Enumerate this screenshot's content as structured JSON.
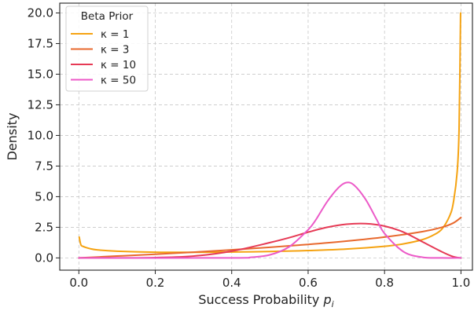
{
  "chart_data": {
    "type": "line",
    "xlabel_prefix": "Success Probability ",
    "xlabel_var": "p",
    "xlabel_sub": "i",
    "ylabel": "Density",
    "xlim": [
      -0.05,
      1.03
    ],
    "ylim": [
      -1.0,
      20.8
    ],
    "x_ticks": [
      0.0,
      0.2,
      0.4,
      0.6,
      0.8,
      1.0
    ],
    "x_tick_labels": [
      "0.0",
      "0.2",
      "0.4",
      "0.6",
      "0.8",
      "1.0"
    ],
    "y_ticks": [
      0.0,
      2.5,
      5.0,
      7.5,
      10.0,
      12.5,
      15.0,
      17.5,
      20.0
    ],
    "y_tick_labels": [
      "0.0",
      "2.5",
      "5.0",
      "7.5",
      "10.0",
      "12.5",
      "15.0",
      "17.5",
      "20.0"
    ],
    "grid": true,
    "legend": {
      "title": "Beta Prior",
      "placement": "top-left",
      "entries": [
        "κ = 1",
        "κ = 3",
        "κ = 10",
        "κ = 50"
      ]
    },
    "series": [
      {
        "name": "κ = 1",
        "color": "#F5A312",
        "x": [
          0.001,
          0.005,
          0.01,
          0.03,
          0.05,
          0.1,
          0.2,
          0.3,
          0.4,
          0.5,
          0.6,
          0.7,
          0.8,
          0.85,
          0.9,
          0.93,
          0.95,
          0.97,
          0.98,
          0.99,
          0.995,
          0.999
        ],
        "y": [
          1.7,
          1.1,
          0.95,
          0.75,
          0.65,
          0.55,
          0.47,
          0.46,
          0.48,
          0.52,
          0.6,
          0.72,
          0.95,
          1.15,
          1.5,
          1.9,
          2.35,
          3.4,
          4.5,
          7.0,
          10.5,
          20.0
        ]
      },
      {
        "name": "κ = 3",
        "color": "#E8692E",
        "x": [
          0.0,
          0.1,
          0.2,
          0.3,
          0.4,
          0.5,
          0.6,
          0.7,
          0.8,
          0.9,
          0.95,
          0.98,
          1.0
        ],
        "y": [
          0.0,
          0.15,
          0.3,
          0.47,
          0.66,
          0.87,
          1.1,
          1.37,
          1.7,
          2.15,
          2.5,
          2.85,
          3.3
        ]
      },
      {
        "name": "κ = 10",
        "color": "#E63A55",
        "x": [
          0.0,
          0.1,
          0.2,
          0.3,
          0.4,
          0.5,
          0.55,
          0.6,
          0.65,
          0.7,
          0.75,
          0.8,
          0.85,
          0.9,
          0.95,
          0.98,
          1.0
        ],
        "y": [
          0.0,
          0.0,
          0.03,
          0.15,
          0.55,
          1.25,
          1.65,
          2.1,
          2.5,
          2.75,
          2.8,
          2.6,
          2.1,
          1.3,
          0.5,
          0.1,
          0.0
        ]
      },
      {
        "name": "κ = 50",
        "color": "#EC5AC8",
        "x": [
          0.0,
          0.4,
          0.45,
          0.5,
          0.55,
          0.6,
          0.62,
          0.65,
          0.68,
          0.7,
          0.72,
          0.75,
          0.78,
          0.8,
          0.85,
          0.9,
          0.95,
          1.0
        ],
        "y": [
          0.0,
          0.0,
          0.05,
          0.25,
          0.9,
          2.3,
          3.1,
          4.6,
          5.75,
          6.15,
          5.95,
          4.8,
          3.1,
          2.0,
          0.5,
          0.05,
          0.0,
          0.0
        ]
      }
    ]
  }
}
